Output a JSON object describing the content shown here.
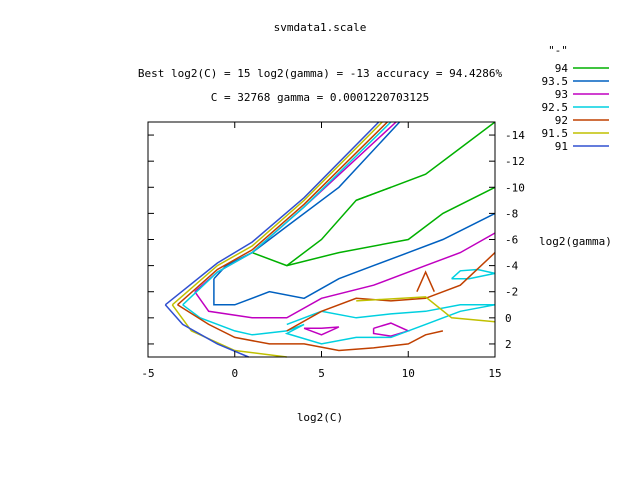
{
  "chart_data": {
    "type": "contour",
    "title": "svmdata1.scale",
    "subtitle_1": "Best log2(C) = 15  log2(gamma) = -13  accuracy = 94.4286%",
    "subtitle_2": "C = 32768  gamma = 0.0001220703125",
    "xlabel": "log2(C)",
    "ylabel": "log2(gamma)",
    "xlim": [
      -5,
      15
    ],
    "ylim": [
      3,
      -15
    ],
    "x_ticks": [
      -5,
      0,
      5,
      10,
      15
    ],
    "x_tick_labels": [
      "-5",
      "0",
      "5",
      "10",
      "15"
    ],
    "y_ticks": [
      -14,
      -12,
      -10,
      -8,
      -6,
      -4,
      -2,
      0,
      2
    ],
    "y_tick_labels": [
      "-14",
      "-12",
      "-10",
      "-8",
      "-6",
      "-4",
      "-2",
      "0",
      "2"
    ],
    "y_axis_side": "right",
    "legend_placement": "top-right outside",
    "legend_title": "\"-\"",
    "series": [
      {
        "name": "94",
        "color": "#00b000",
        "lines": [
          [
            [
              1,
              -5
            ],
            [
              3,
              -4
            ],
            [
              5,
              -6
            ],
            [
              7,
              -9
            ],
            [
              9,
              -10
            ],
            [
              11,
              -11
            ],
            [
              13,
              -13
            ],
            [
              15,
              -15
            ]
          ],
          [
            [
              3,
              -4
            ],
            [
              6,
              -5
            ],
            [
              10,
              -6
            ],
            [
              12,
              -8
            ],
            [
              15,
              -10
            ]
          ],
          [
            [
              7,
              -9
            ],
            [
              9,
              -10
            ]
          ]
        ]
      },
      {
        "name": "93.5",
        "color": "#0060c0",
        "lines": [
          [
            [
              -1.2,
              -3
            ],
            [
              -0.5,
              -4
            ],
            [
              1,
              -5
            ],
            [
              3,
              -7
            ],
            [
              6,
              -10
            ],
            [
              9.5,
              -15
            ]
          ],
          [
            [
              -1.2,
              -3
            ],
            [
              -1.2,
              -1
            ],
            [
              0,
              -1
            ],
            [
              2,
              -2
            ],
            [
              4,
              -1.5
            ],
            [
              6,
              -3
            ],
            [
              8,
              -4
            ],
            [
              10,
              -5
            ],
            [
              12,
              -6
            ],
            [
              15,
              -8
            ]
          ]
        ]
      },
      {
        "name": "93",
        "color": "#c000c0",
        "lines": [
          [
            [
              -2.3,
              -2
            ],
            [
              -1,
              -3.5
            ],
            [
              1,
              -5
            ],
            [
              4,
              -8.5
            ],
            [
              9.3,
              -15
            ]
          ],
          [
            [
              -2.3,
              -2
            ],
            [
              -1.5,
              -0.5
            ],
            [
              1,
              0
            ],
            [
              3,
              0
            ],
            [
              5,
              -1.5
            ],
            [
              8,
              -2.5
            ],
            [
              11,
              -4
            ],
            [
              13,
              -5
            ],
            [
              15,
              -6.5
            ]
          ],
          [
            [
              5,
              0.8
            ],
            [
              6,
              0.7
            ],
            [
              5,
              1.3
            ],
            [
              4,
              0.8
            ],
            [
              5,
              0.8
            ]
          ],
          [
            [
              8,
              0.8
            ],
            [
              9,
              0.4
            ],
            [
              10,
              1
            ],
            [
              9,
              1.4
            ],
            [
              8,
              1.2
            ],
            [
              8,
              0.8
            ]
          ]
        ]
      },
      {
        "name": "92.5",
        "color": "#00d0e0",
        "lines": [
          [
            [
              -3,
              -1
            ],
            [
              -1,
              -3.5
            ],
            [
              1,
              -5
            ],
            [
              4,
              -8.5
            ],
            [
              9,
              -15
            ]
          ],
          [
            [
              -3,
              -1
            ],
            [
              -2,
              0
            ],
            [
              0,
              1
            ],
            [
              1,
              1.3
            ],
            [
              3,
              1
            ],
            [
              4,
              0.5
            ],
            [
              3,
              1.2
            ],
            [
              5,
              2
            ],
            [
              7,
              1.5
            ],
            [
              9,
              1.5
            ],
            [
              11,
              0.5
            ],
            [
              13,
              -0.5
            ],
            [
              15,
              -1
            ]
          ],
          [
            [
              3,
              0.5
            ],
            [
              5,
              -0.5
            ],
            [
              7,
              0
            ],
            [
              9,
              -0.3
            ],
            [
              11,
              -0.5
            ],
            [
              13,
              -1
            ],
            [
              15,
              -1
            ]
          ],
          [
            [
              12.5,
              -3
            ],
            [
              13,
              -3.6
            ],
            [
              14,
              -3.7
            ],
            [
              15,
              -3.4
            ],
            [
              13.5,
              -3
            ],
            [
              12.5,
              -3
            ]
          ]
        ]
      },
      {
        "name": "92",
        "color": "#c04000",
        "lines": [
          [
            [
              -3.3,
              -1
            ],
            [
              -1,
              -3.7
            ],
            [
              1,
              -5.2
            ],
            [
              4,
              -8.7
            ],
            [
              8.8,
              -15
            ]
          ],
          [
            [
              -3.3,
              -1
            ],
            [
              -1.5,
              0.5
            ],
            [
              0,
              1.5
            ],
            [
              2,
              2
            ],
            [
              4,
              2
            ],
            [
              6,
              2.5
            ],
            [
              8,
              2.3
            ],
            [
              10,
              2
            ],
            [
              11,
              1.3
            ],
            [
              12,
              1
            ]
          ],
          [
            [
              3,
              1
            ],
            [
              5,
              -0.5
            ],
            [
              7,
              -1.5
            ],
            [
              9,
              -1.3
            ],
            [
              11,
              -1.5
            ],
            [
              13,
              -2.5
            ],
            [
              15,
              -5
            ]
          ],
          [
            [
              10.5,
              -2
            ],
            [
              11,
              -3.5
            ],
            [
              11.5,
              -2
            ]
          ]
        ]
      },
      {
        "name": "91.5",
        "color": "#c0c000",
        "lines": [
          [
            [
              -3.6,
              -1
            ],
            [
              -1,
              -4
            ],
            [
              1,
              -5.5
            ],
            [
              4,
              -9
            ],
            [
              8.5,
              -15
            ]
          ],
          [
            [
              -3.6,
              -1
            ],
            [
              -2.5,
              1
            ],
            [
              0,
              2.5
            ],
            [
              3,
              3
            ]
          ],
          [
            [
              7,
              -1.3
            ],
            [
              11,
              -1.6
            ],
            [
              12.5,
              0
            ],
            [
              15,
              0.3
            ]
          ]
        ]
      },
      {
        "name": "91",
        "color": "#3050d0",
        "lines": [
          [
            [
              -4,
              -1
            ],
            [
              -1,
              -4.2
            ],
            [
              1,
              -5.8
            ],
            [
              4,
              -9.2
            ],
            [
              8.3,
              -15
            ]
          ],
          [
            [
              -4,
              -1
            ],
            [
              -3,
              0.5
            ],
            [
              -1,
              2
            ],
            [
              0.8,
              3
            ]
          ]
        ]
      }
    ],
    "best_point": [
      15,
      -13
    ]
  }
}
